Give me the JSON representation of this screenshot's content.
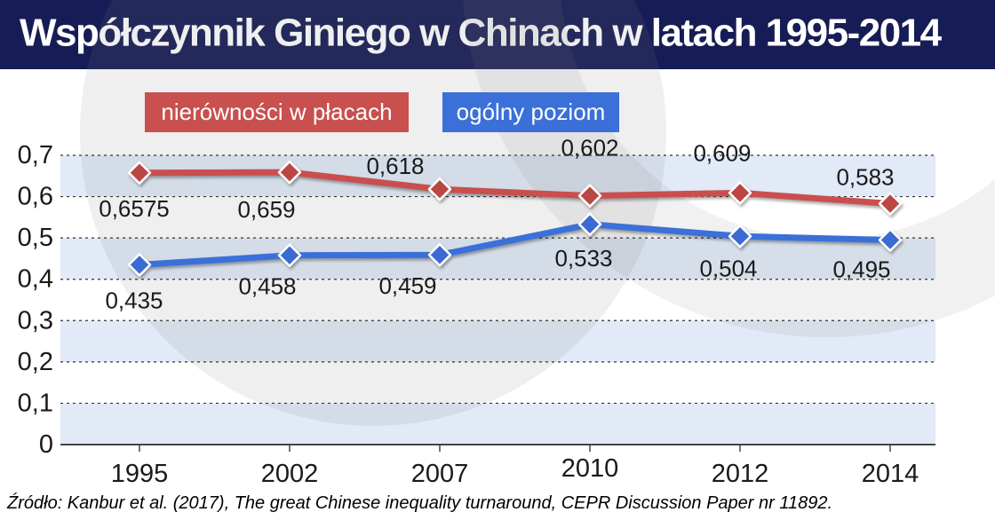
{
  "header": {
    "title": "Współczynnik Giniego w Chinach w latach 1995-2014"
  },
  "legend": {
    "series1": "nierówności w płacach",
    "series2": "ogólny poziom"
  },
  "source": {
    "text": "Źródło: Kanbur et al. (2017), The great Chinese inequality turnaround, CEPR Discussion Paper nr 11892."
  },
  "colors": {
    "header_bg": "#161c55",
    "series1": "#c8504e",
    "series1_marker": "#bb4745",
    "series2": "#3b70d8",
    "series2_marker": "#3a6ad2",
    "band": "#e1eaf6",
    "grid": "#333333",
    "axis": "#444444",
    "text": "#1a1a1a",
    "watermark": "#808080"
  },
  "chart_data": {
    "type": "line",
    "title": "Współczynnik Giniego w Chinach w latach 1995-2014",
    "categories": [
      "1995",
      "2002",
      "2007",
      "2010",
      "2012",
      "2014"
    ],
    "series": [
      {
        "name": "nierówności w płacach",
        "color": "#c8504e",
        "marker_color": "#bb4745",
        "values": [
          0.6575,
          0.659,
          0.618,
          0.602,
          0.609,
          0.583
        ],
        "point_labels": [
          "0,6575",
          "0,659",
          "0,618",
          "0,602",
          "0,609",
          "0,583"
        ],
        "label_side": [
          "below",
          "below",
          "above",
          "above",
          "above",
          "above"
        ],
        "label_dx": [
          -6,
          -26,
          -50,
          0,
          -20,
          -28
        ],
        "label_dy": [
          40,
          42,
          -26,
          -54,
          -45,
          -30
        ]
      },
      {
        "name": "ogólny poziom",
        "color": "#3b70d8",
        "marker_color": "#3a6ad2",
        "values": [
          0.435,
          0.458,
          0.459,
          0.533,
          0.504,
          0.495
        ],
        "point_labels": [
          "0,435",
          "0,458",
          "0,459",
          "0,533",
          "0,504",
          "0,495"
        ],
        "label_side": [
          "below",
          "below",
          "below",
          "below",
          "below",
          "below"
        ],
        "label_dx": [
          -6,
          -25,
          -36,
          -7,
          -13,
          -32
        ],
        "label_dy": [
          40,
          35,
          35,
          38,
          36,
          33
        ]
      }
    ],
    "xlabel": "",
    "ylabel": "",
    "ylim": [
      0,
      0.7
    ],
    "ytick_step": 0.1,
    "ytick_labels": [
      "0",
      "0,1",
      "0,2",
      "0,3",
      "0,4",
      "0,5",
      "0,6",
      "0,7"
    ],
    "grid": "horizontal-dashed",
    "bands": "alternating horizontal fills between gridlines (0-0,1 / 0,2-0,3 / 0,4-0,5 / 0,6-0,7)",
    "legend_position": "top",
    "marker": "diamond"
  }
}
